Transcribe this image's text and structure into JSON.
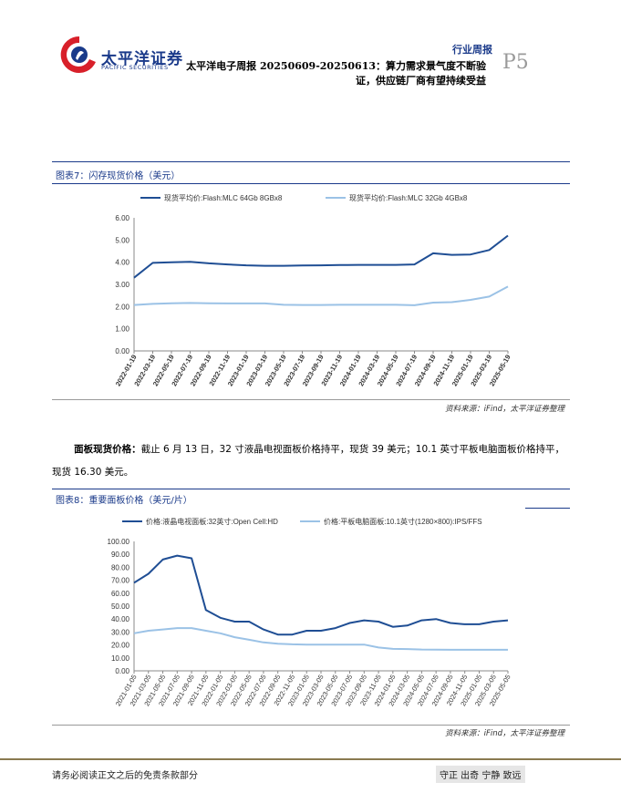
{
  "header": {
    "logo_cn": "太平洋证券",
    "logo_en": "PACIFIC SECURITIES",
    "report_type": "行业周报",
    "title_line1": "太平洋电子周报 20250609-20250613：算力需求景气度不断验",
    "title_line2": "证，供应链厂商有望持续受益",
    "page": "P5"
  },
  "figure7": {
    "title": "图表7：闪存现货价格（美元）",
    "source": "资料来源：iFind，太平洋证券整理"
  },
  "paragraph": {
    "bold": "面板现货价格：",
    "text": "截止 6 月 13 日，32 寸液晶电视面板价格持平，现货 39 美元；10.1 英寸平板电脑面板价格持平，现货 16.30 美元。"
  },
  "figure8": {
    "title": "图表8：重要面板价格（美元/片）",
    "source": "资料来源：iFind，太平洋证券整理"
  },
  "footer": {
    "disclaimer": "请务必阅读正文之后的免责条款部分",
    "slogan": "守正 出奇 宁静 致远"
  },
  "chart_data": [
    {
      "type": "line",
      "title": "",
      "xlabel": "",
      "ylabel": "",
      "ylim": [
        0,
        6
      ],
      "yticks": [
        "6.00",
        "5.00",
        "4.00",
        "3.00",
        "2.00",
        "1.00",
        "0.00"
      ],
      "grid": false,
      "legend": "top",
      "x": [
        "2022-01-19",
        "2022-03-19",
        "2022-05-19",
        "2022-07-19",
        "2022-09-19",
        "2022-11-19",
        "2023-01-19",
        "2023-03-19",
        "2023-05-19",
        "2023-07-19",
        "2023-09-19",
        "2023-11-19",
        "2024-01-19",
        "2024-03-19",
        "2024-05-19",
        "2024-07-19",
        "2024-09-19",
        "2024-11-19",
        "2025-01-19",
        "2025-03-19",
        "2025-05-19"
      ],
      "series": [
        {
          "name": "现货平均价:Flash:MLC 64Gb 8GBx8",
          "color": "#1f4e94",
          "values": [
            3.3,
            3.97,
            4.0,
            4.02,
            3.95,
            3.9,
            3.86,
            3.84,
            3.84,
            3.85,
            3.86,
            3.87,
            3.88,
            3.88,
            3.88,
            3.9,
            4.4,
            4.33,
            4.35,
            4.55,
            5.2
          ]
        },
        {
          "name": "现货平均价:Flash:MLC 32Gb 4GBx8",
          "color": "#9bc2e6",
          "values": [
            2.07,
            2.12,
            2.15,
            2.16,
            2.15,
            2.14,
            2.14,
            2.14,
            2.08,
            2.07,
            2.07,
            2.08,
            2.08,
            2.08,
            2.08,
            2.06,
            2.18,
            2.2,
            2.3,
            2.45,
            2.9
          ]
        }
      ]
    },
    {
      "type": "line",
      "title": "",
      "xlabel": "",
      "ylabel": "",
      "ylim": [
        0,
        100
      ],
      "yticks": [
        "100.00",
        "90.00",
        "80.00",
        "70.00",
        "60.00",
        "50.00",
        "40.00",
        "30.00",
        "20.00",
        "10.00",
        "0.00"
      ],
      "grid": false,
      "legend": "top",
      "x": [
        "2021-01-05",
        "2021-03-05",
        "2021-05-05",
        "2021-07-05",
        "2021-09-05",
        "2021-11-05",
        "2022-01-05",
        "2022-03-05",
        "2022-05-05",
        "2022-07-05",
        "2022-09-05",
        "2022-11-05",
        "2023-01-05",
        "2023-03-05",
        "2023-05-05",
        "2023-07-05",
        "2023-09-05",
        "2023-11-05",
        "2024-01-05",
        "2024-03-05",
        "2024-05-05",
        "2024-07-05",
        "2024-09-05",
        "2024-11-05",
        "2025-01-05",
        "2025-03-05",
        "2025-05-05"
      ],
      "series": [
        {
          "name": "价格:液晶电视面板:32英寸:Open Cell:HD",
          "color": "#1f4e94",
          "values": [
            68,
            75,
            86,
            89,
            87,
            47,
            41,
            38,
            38,
            32,
            28,
            28,
            31,
            31,
            33,
            37,
            39,
            38,
            34,
            35,
            39,
            40,
            37,
            36,
            36,
            38,
            39
          ]
        },
        {
          "name": "价格:平板电脑面板:10.1英寸(1280×800):IPS/FFS",
          "color": "#9bc2e6",
          "values": [
            29,
            31,
            32,
            33,
            33,
            31,
            29,
            26,
            24,
            22,
            21,
            20.5,
            20.3,
            20.3,
            20.3,
            20.3,
            20.3,
            18,
            17,
            16.8,
            16.5,
            16.4,
            16.3,
            16.3,
            16.3,
            16.3,
            16.3
          ]
        }
      ]
    }
  ]
}
